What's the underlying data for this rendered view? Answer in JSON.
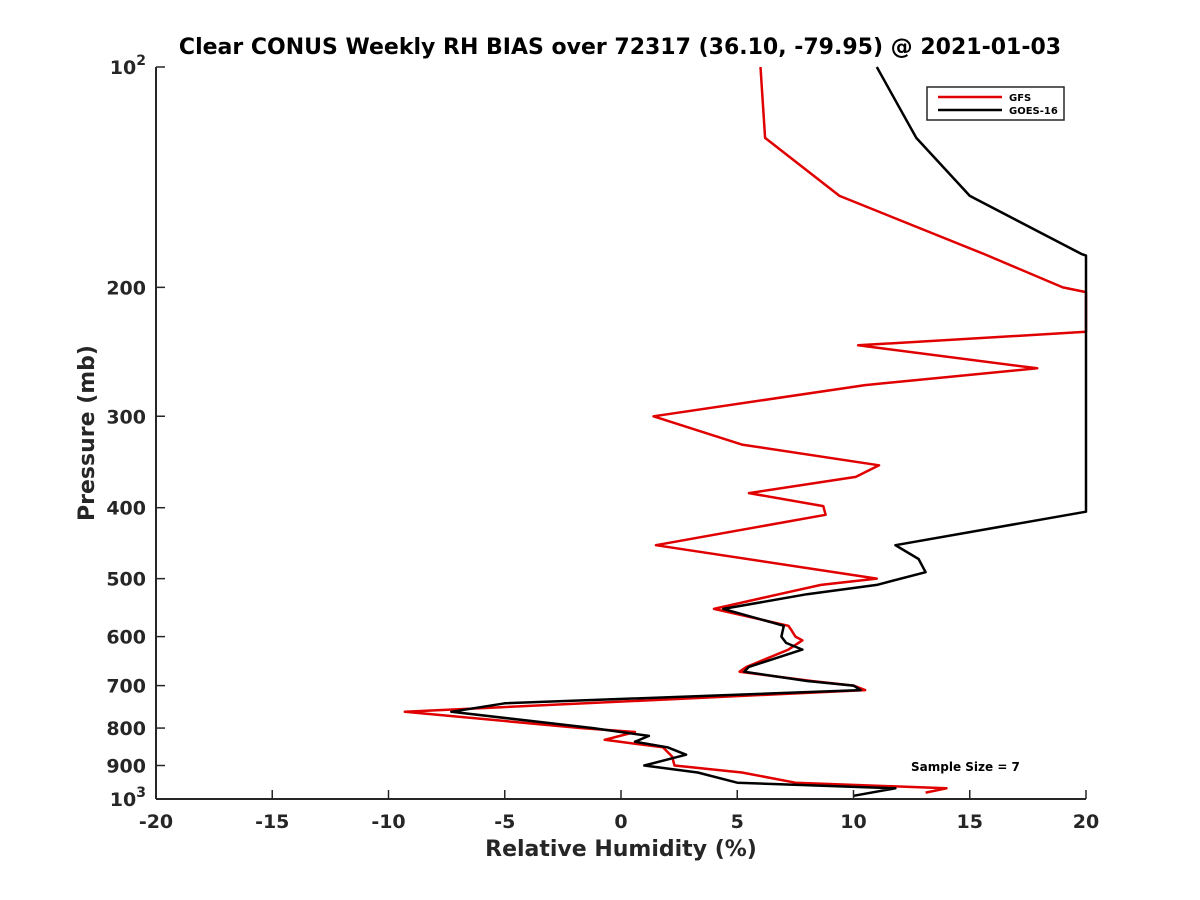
{
  "chart_data": {
    "type": "line",
    "title": "Clear CONUS Weekly RH BIAS over 72317 (36.10, -79.95) @ 2021-01-03",
    "xlabel": "Relative Humidity (%)",
    "ylabel": "Pressure (mb)",
    "xlim": [
      -20,
      20
    ],
    "ylim": [
      100,
      1000
    ],
    "y_scale": "log",
    "y_reversed": true,
    "grid": false,
    "legend_position": "top-right",
    "x_ticks": [
      "-20",
      "-15",
      "-10",
      "-5",
      "0",
      "5",
      "10",
      "15",
      "20"
    ],
    "y_ticks": [
      {
        "value": 100,
        "base": "10",
        "exp": "2"
      },
      {
        "value": 200,
        "label": "200"
      },
      {
        "value": 300,
        "label": "300"
      },
      {
        "value": 400,
        "label": "400"
      },
      {
        "value": 500,
        "label": "500"
      },
      {
        "value": 600,
        "label": "600"
      },
      {
        "value": 700,
        "label": "700"
      },
      {
        "value": 800,
        "label": "800"
      },
      {
        "value": 900,
        "label": "900"
      },
      {
        "value": 1000,
        "base": "10",
        "exp": "3"
      }
    ],
    "annotation": "Sample Size = 7",
    "series": [
      {
        "name": "GFS",
        "color": "#e00000",
        "points": [
          [
            6.0,
            100
          ],
          [
            6.2,
            125
          ],
          [
            9.4,
            150
          ],
          [
            15.6,
            180
          ],
          [
            19.0,
            200
          ],
          [
            20.0,
            203
          ],
          [
            20.0,
            230
          ],
          [
            10.2,
            240
          ],
          [
            17.9,
            258
          ],
          [
            10.5,
            272
          ],
          [
            1.4,
            300
          ],
          [
            5.2,
            328
          ],
          [
            11.1,
            350
          ],
          [
            10.1,
            363
          ],
          [
            5.5,
            382
          ],
          [
            8.7,
            398
          ],
          [
            8.8,
            409
          ],
          [
            1.5,
            450
          ],
          [
            11.0,
            500
          ],
          [
            8.6,
            510
          ],
          [
            6.8,
            525
          ],
          [
            4.0,
            550
          ],
          [
            7.2,
            580
          ],
          [
            7.3,
            586
          ],
          [
            7.5,
            600
          ],
          [
            7.8,
            607
          ],
          [
            7.2,
            625
          ],
          [
            5.4,
            660
          ],
          [
            5.1,
            670
          ],
          [
            8.2,
            690
          ],
          [
            10.0,
            700
          ],
          [
            10.5,
            710
          ],
          [
            -9.3,
            760
          ],
          [
            -1.7,
            800
          ],
          [
            0.6,
            810
          ],
          [
            -0.7,
            830
          ],
          [
            1.8,
            850
          ],
          [
            2.2,
            875
          ],
          [
            2.3,
            900
          ],
          [
            5.2,
            920
          ],
          [
            7.5,
            950
          ],
          [
            14.0,
            967
          ],
          [
            13.1,
            980
          ]
        ]
      },
      {
        "name": "GOES-16",
        "color": "#000000",
        "points": [
          [
            11.0,
            100
          ],
          [
            12.7,
            125
          ],
          [
            15.0,
            150
          ],
          [
            19.8,
            180
          ],
          [
            20.0,
            181
          ],
          [
            20.0,
            405
          ],
          [
            11.8,
            450
          ],
          [
            12.8,
            470
          ],
          [
            13.1,
            490
          ],
          [
            11.0,
            510
          ],
          [
            8.0,
            525
          ],
          [
            4.4,
            550
          ],
          [
            7.0,
            580
          ],
          [
            6.9,
            600
          ],
          [
            7.1,
            612
          ],
          [
            7.8,
            625
          ],
          [
            5.5,
            660
          ],
          [
            5.3,
            670
          ],
          [
            8.0,
            690
          ],
          [
            10.0,
            700
          ],
          [
            10.3,
            710
          ],
          [
            -5.0,
            740
          ],
          [
            -7.3,
            760
          ],
          [
            -1.2,
            800
          ],
          [
            1.2,
            820
          ],
          [
            0.6,
            835
          ],
          [
            2.0,
            850
          ],
          [
            2.8,
            870
          ],
          [
            1.0,
            900
          ],
          [
            3.3,
            920
          ],
          [
            5.0,
            950
          ],
          [
            11.8,
            967
          ],
          [
            10.0,
            990
          ]
        ]
      }
    ]
  }
}
